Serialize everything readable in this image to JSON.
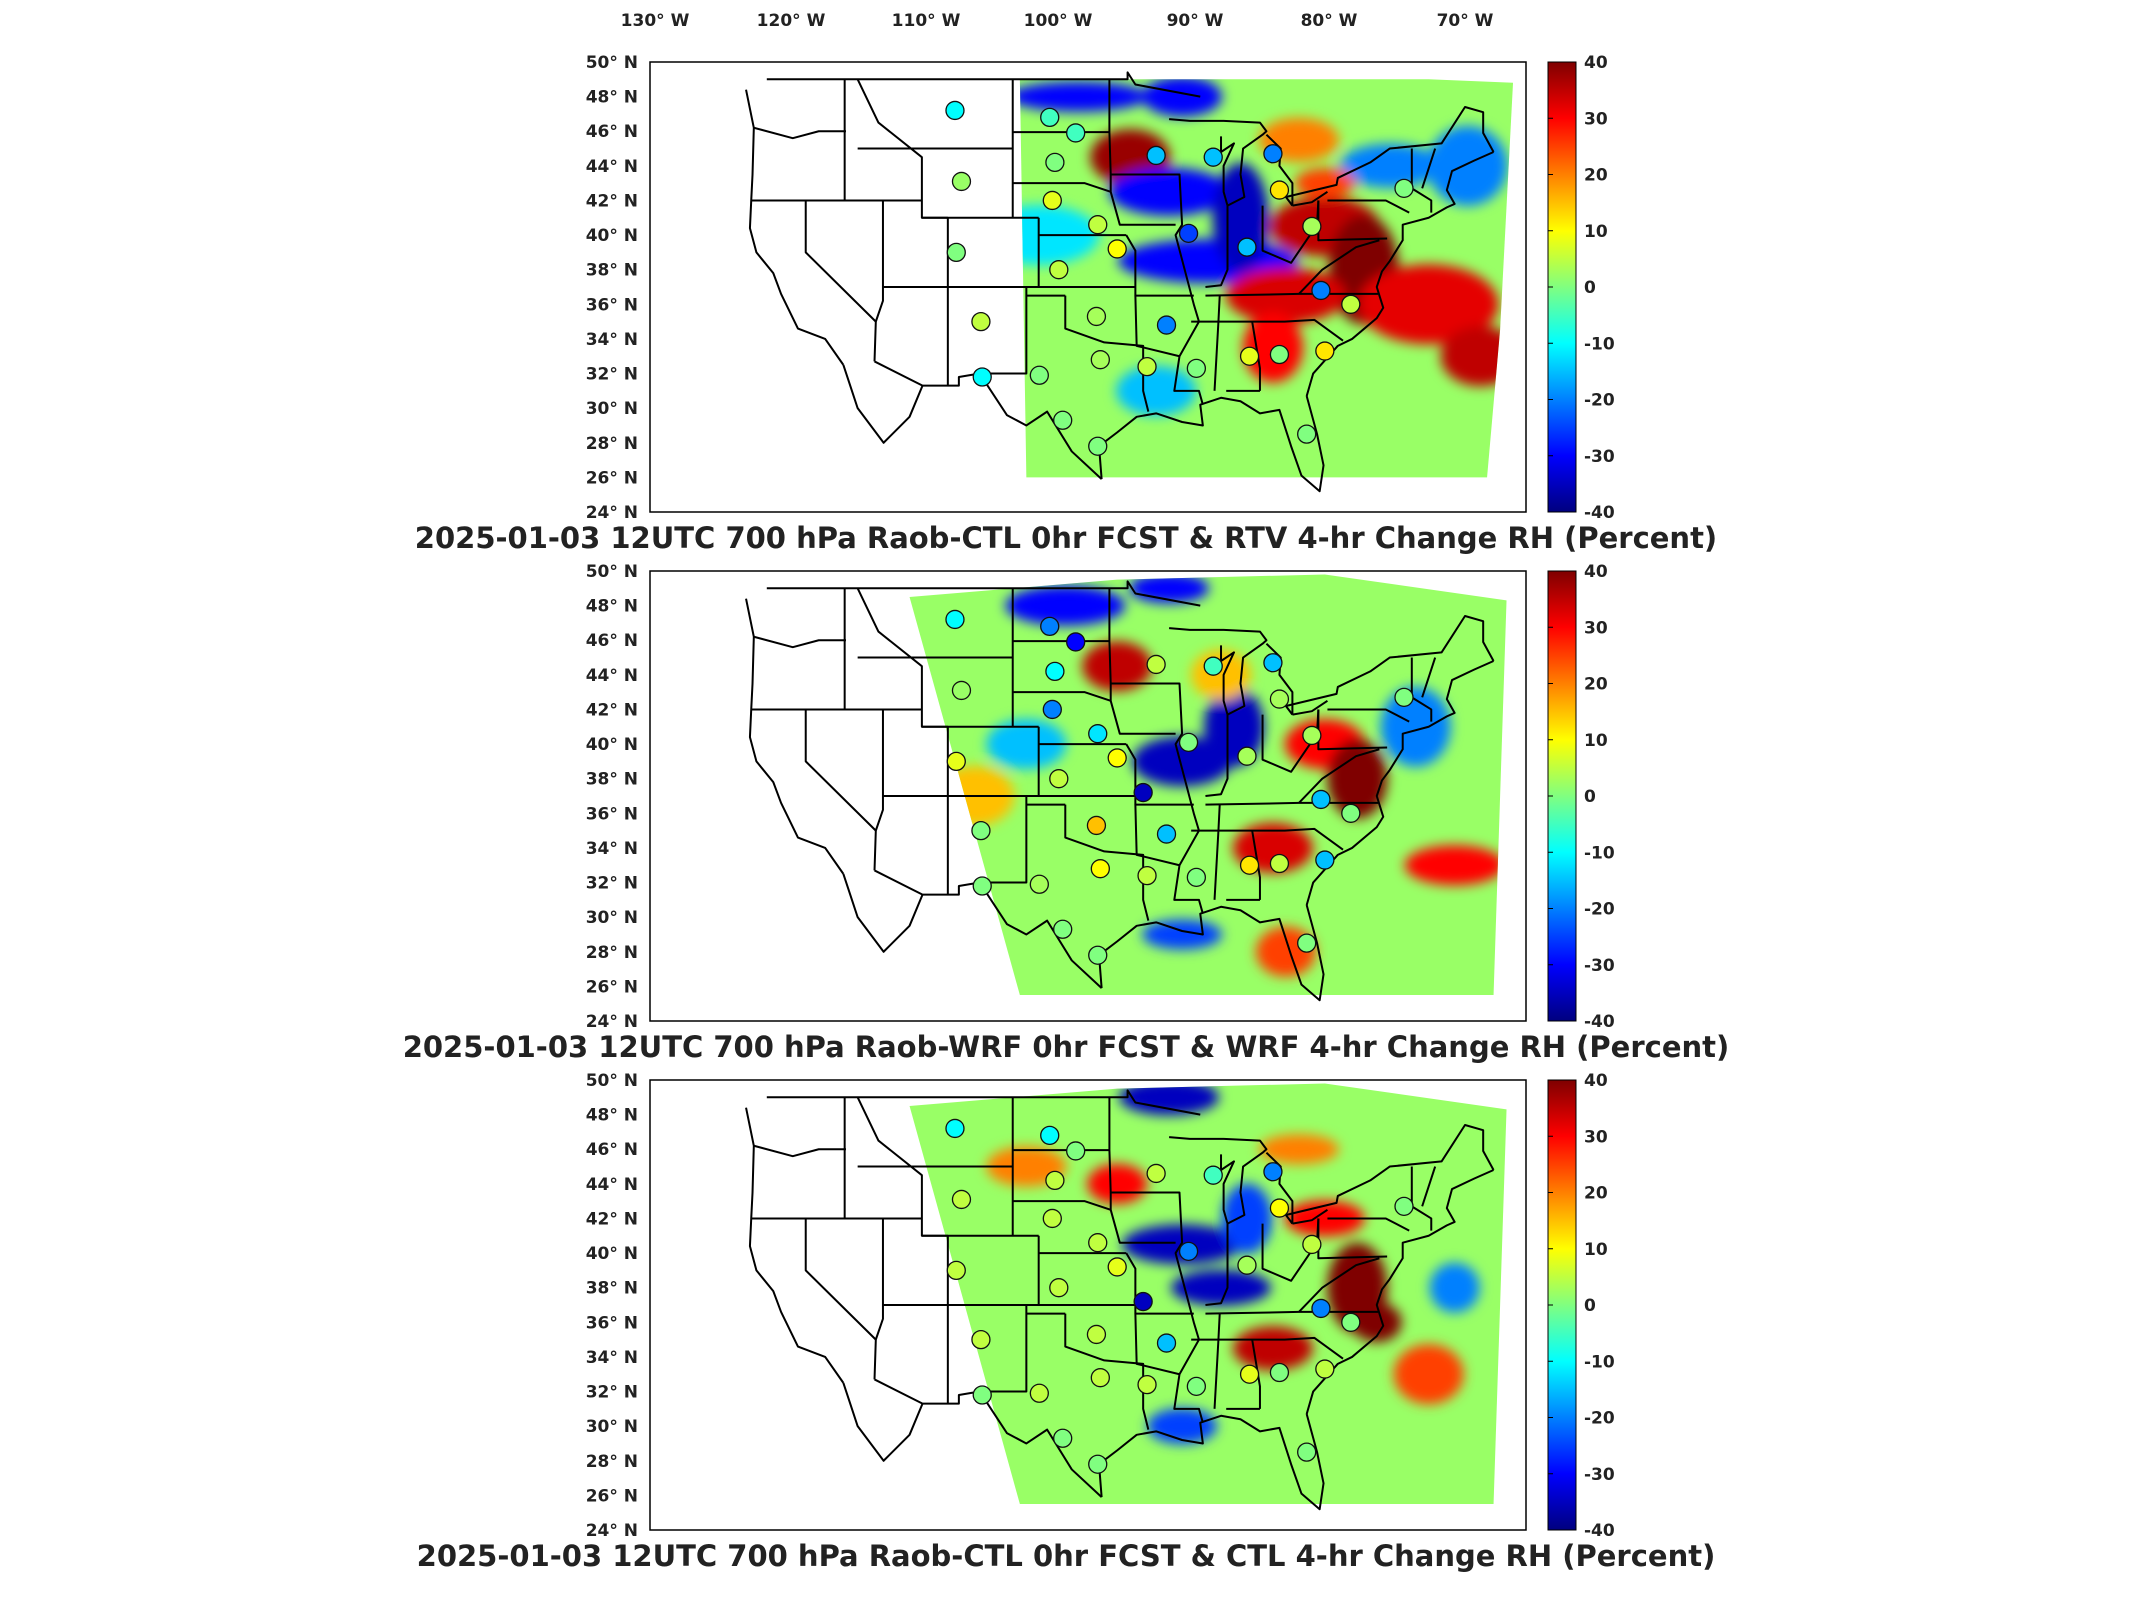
{
  "figure": {
    "lon_labels": [
      "130° W",
      "120° W",
      "110° W",
      "100° W",
      "90° W",
      "80° W",
      "70° W"
    ],
    "lat_labels": [
      "50° N",
      "48° N",
      "46° N",
      "44° N",
      "42° N",
      "40° N",
      "38° N",
      "36° N",
      "34° N",
      "32° N",
      "30° N",
      "28° N",
      "26° N",
      "24° N"
    ],
    "colorbar_ticks": [
      "40",
      "30",
      "20",
      "10",
      "0",
      "-10",
      "-20",
      "-30",
      "-40"
    ],
    "colorbar_colors": [
      "#00007f",
      "#0000ff",
      "#0080ff",
      "#00ffff",
      "#80ff80",
      "#ffff00",
      "#ff8000",
      "#ff0000",
      "#7f0000"
    ],
    "panels": [
      {
        "title": "2025-01-03 12UTC 700 hPa Raob-CTL 0hr FCST & RTV 4-hr Change RH (Percent)"
      },
      {
        "title": "2025-01-03 12UTC 700 hPa Raob-WRF 0hr FCST & WRF 4-hr Change RH (Percent)"
      },
      {
        "title": "2025-01-03 12UTC 700 hPa Raob-CTL 0hr FCST & CTL 4-hr Change RH (Percent)"
      }
    ]
  },
  "map_data": {
    "field": "RH 4-hr change",
    "units": "Percent",
    "color_range": [
      -40,
      40
    ],
    "raob_stations_note": "circles colored by Raob-minus-model difference",
    "panels": [
      {
        "domain": "RTV",
        "stations": [
          {
            "lon": -108.5,
            "lat": 47.2,
            "v": -10
          },
          {
            "lon": -101.2,
            "lat": 46.8,
            "v": -5
          },
          {
            "lon": -99.2,
            "lat": 45.9,
            "v": -5
          },
          {
            "lon": -100.8,
            "lat": 44.2,
            "v": 0
          },
          {
            "lon": -108.0,
            "lat": 43.1,
            "v": 2
          },
          {
            "lon": -101.0,
            "lat": 42.0,
            "v": 8
          },
          {
            "lon": -97.5,
            "lat": 40.6,
            "v": 5
          },
          {
            "lon": -93.0,
            "lat": 44.6,
            "v": -15
          },
          {
            "lon": -88.6,
            "lat": 44.5,
            "v": -15
          },
          {
            "lon": -84.0,
            "lat": 44.7,
            "v": -20
          },
          {
            "lon": -83.5,
            "lat": 42.6,
            "v": 12
          },
          {
            "lon": -81.0,
            "lat": 40.5,
            "v": 3
          },
          {
            "lon": -86.0,
            "lat": 39.3,
            "v": -15
          },
          {
            "lon": -90.5,
            "lat": 40.1,
            "v": -25
          },
          {
            "lon": -96.0,
            "lat": 39.2,
            "v": 10
          },
          {
            "lon": -100.5,
            "lat": 38.0,
            "v": 5
          },
          {
            "lon": -108.4,
            "lat": 39.0,
            "v": 0
          },
          {
            "lon": -106.5,
            "lat": 35.0,
            "v": 5
          },
          {
            "lon": -97.6,
            "lat": 35.3,
            "v": 3
          },
          {
            "lon": -92.2,
            "lat": 34.8,
            "v": -20
          },
          {
            "lon": -85.8,
            "lat": 33.0,
            "v": 8
          },
          {
            "lon": -83.5,
            "lat": 33.1,
            "v": 0
          },
          {
            "lon": -80.0,
            "lat": 33.3,
            "v": 12
          },
          {
            "lon": -78.0,
            "lat": 36.0,
            "v": 5
          },
          {
            "lon": -80.3,
            "lat": 36.8,
            "v": -20
          },
          {
            "lon": -89.9,
            "lat": 32.3,
            "v": 0
          },
          {
            "lon": -93.7,
            "lat": 32.4,
            "v": 5
          },
          {
            "lon": -97.3,
            "lat": 32.8,
            "v": 3
          },
          {
            "lon": -102.0,
            "lat": 31.9,
            "v": 0
          },
          {
            "lon": -106.4,
            "lat": 31.8,
            "v": -10
          },
          {
            "lon": -100.2,
            "lat": 29.3,
            "v": 0
          },
          {
            "lon": -97.5,
            "lat": 27.8,
            "v": 0
          },
          {
            "lon": -81.4,
            "lat": 28.5,
            "v": 0
          },
          {
            "lon": -73.9,
            "lat": 42.7,
            "v": 0
          }
        ]
      },
      {
        "domain": "WRF",
        "stations": [
          {
            "lon": -108.5,
            "lat": 47.2,
            "v": -10
          },
          {
            "lon": -101.2,
            "lat": 46.8,
            "v": -20
          },
          {
            "lon": -99.2,
            "lat": 45.9,
            "v": -30
          },
          {
            "lon": -100.8,
            "lat": 44.2,
            "v": -10
          },
          {
            "lon": -108.0,
            "lat": 43.1,
            "v": 2
          },
          {
            "lon": -101.0,
            "lat": 42.0,
            "v": -20
          },
          {
            "lon": -97.5,
            "lat": 40.6,
            "v": -12
          },
          {
            "lon": -93.0,
            "lat": 44.6,
            "v": 5
          },
          {
            "lon": -88.6,
            "lat": 44.5,
            "v": -5
          },
          {
            "lon": -84.0,
            "lat": 44.7,
            "v": -15
          },
          {
            "lon": -83.5,
            "lat": 42.6,
            "v": 3
          },
          {
            "lon": -81.0,
            "lat": 40.5,
            "v": 3
          },
          {
            "lon": -86.0,
            "lat": 39.3,
            "v": 3
          },
          {
            "lon": -90.5,
            "lat": 40.1,
            "v": 0
          },
          {
            "lon": -96.0,
            "lat": 39.2,
            "v": 10
          },
          {
            "lon": -100.5,
            "lat": 38.0,
            "v": 5
          },
          {
            "lon": -108.4,
            "lat": 39.0,
            "v": 8
          },
          {
            "lon": -106.5,
            "lat": 35.0,
            "v": 0
          },
          {
            "lon": -97.6,
            "lat": 35.3,
            "v": 15
          },
          {
            "lon": -92.2,
            "lat": 34.8,
            "v": -15
          },
          {
            "lon": -85.8,
            "lat": 33.0,
            "v": 12
          },
          {
            "lon": -83.5,
            "lat": 33.1,
            "v": 5
          },
          {
            "lon": -80.0,
            "lat": 33.3,
            "v": -15
          },
          {
            "lon": -78.0,
            "lat": 36.0,
            "v": 0
          },
          {
            "lon": -80.3,
            "lat": 36.8,
            "v": -15
          },
          {
            "lon": -89.9,
            "lat": 32.3,
            "v": 0
          },
          {
            "lon": -93.7,
            "lat": 32.4,
            "v": 5
          },
          {
            "lon": -97.3,
            "lat": 32.8,
            "v": 10
          },
          {
            "lon": -102.0,
            "lat": 31.9,
            "v": 3
          },
          {
            "lon": -106.4,
            "lat": 31.8,
            "v": 0
          },
          {
            "lon": -100.2,
            "lat": 29.3,
            "v": 0
          },
          {
            "lon": -97.5,
            "lat": 27.8,
            "v": 0
          },
          {
            "lon": -81.4,
            "lat": 28.5,
            "v": 0
          },
          {
            "lon": -73.9,
            "lat": 42.7,
            "v": 0
          },
          {
            "lon": -94.0,
            "lat": 37.2,
            "v": -35
          }
        ]
      },
      {
        "domain": "CTL",
        "stations": [
          {
            "lon": -108.5,
            "lat": 47.2,
            "v": -10
          },
          {
            "lon": -101.2,
            "lat": 46.8,
            "v": -10
          },
          {
            "lon": -99.2,
            "lat": 45.9,
            "v": 0
          },
          {
            "lon": -100.8,
            "lat": 44.2,
            "v": 5
          },
          {
            "lon": -108.0,
            "lat": 43.1,
            "v": 5
          },
          {
            "lon": -101.0,
            "lat": 42.0,
            "v": 5
          },
          {
            "lon": -97.5,
            "lat": 40.6,
            "v": 5
          },
          {
            "lon": -93.0,
            "lat": 44.6,
            "v": 5
          },
          {
            "lon": -88.6,
            "lat": 44.5,
            "v": -5
          },
          {
            "lon": -84.0,
            "lat": 44.7,
            "v": -20
          },
          {
            "lon": -83.5,
            "lat": 42.6,
            "v": 10
          },
          {
            "lon": -81.0,
            "lat": 40.5,
            "v": 5
          },
          {
            "lon": -86.0,
            "lat": 39.3,
            "v": 3
          },
          {
            "lon": -90.5,
            "lat": 40.1,
            "v": -20
          },
          {
            "lon": -96.0,
            "lat": 39.2,
            "v": 8
          },
          {
            "lon": -100.5,
            "lat": 38.0,
            "v": 5
          },
          {
            "lon": -108.4,
            "lat": 39.0,
            "v": 5
          },
          {
            "lon": -106.5,
            "lat": 35.0,
            "v": 5
          },
          {
            "lon": -97.6,
            "lat": 35.3,
            "v": 5
          },
          {
            "lon": -92.2,
            "lat": 34.8,
            "v": -15
          },
          {
            "lon": -85.8,
            "lat": 33.0,
            "v": 8
          },
          {
            "lon": -83.5,
            "lat": 33.1,
            "v": 0
          },
          {
            "lon": -80.0,
            "lat": 33.3,
            "v": 5
          },
          {
            "lon": -78.0,
            "lat": 36.0,
            "v": 0
          },
          {
            "lon": -80.3,
            "lat": 36.8,
            "v": -20
          },
          {
            "lon": -89.9,
            "lat": 32.3,
            "v": 0
          },
          {
            "lon": -93.7,
            "lat": 32.4,
            "v": 5
          },
          {
            "lon": -97.3,
            "lat": 32.8,
            "v": 5
          },
          {
            "lon": -102.0,
            "lat": 31.9,
            "v": 5
          },
          {
            "lon": -106.4,
            "lat": 31.8,
            "v": 0
          },
          {
            "lon": -100.2,
            "lat": 29.3,
            "v": 0
          },
          {
            "lon": -97.5,
            "lat": 27.8,
            "v": 0
          },
          {
            "lon": -81.4,
            "lat": 28.5,
            "v": 0
          },
          {
            "lon": -73.9,
            "lat": 42.7,
            "v": 0
          },
          {
            "lon": -94.0,
            "lat": 37.2,
            "v": -35
          }
        ]
      }
    ]
  }
}
